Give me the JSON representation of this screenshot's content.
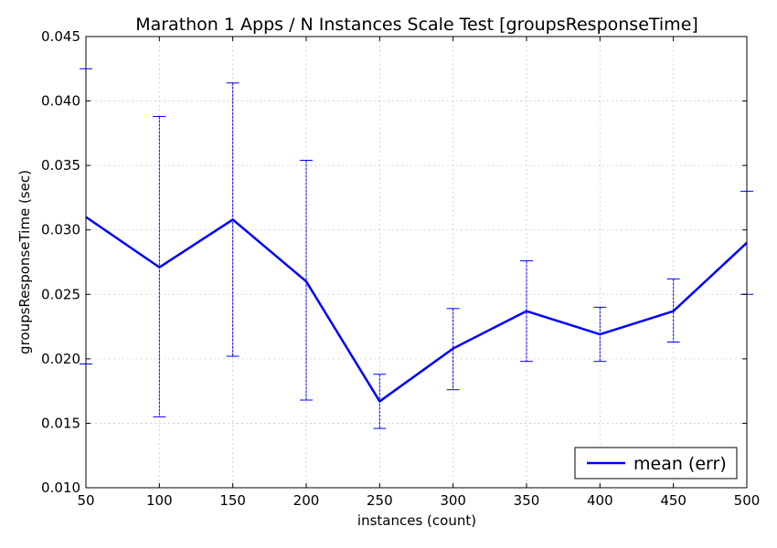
{
  "chart_data": {
    "type": "line",
    "title": "Marathon 1 Apps / N Instances Scale Test [groupsResponseTime]",
    "xlabel": "instances (count)",
    "ylabel": "groupsResponseTime (sec)",
    "xlim": [
      50,
      500
    ],
    "ylim": [
      0.01,
      0.045
    ],
    "xticks": [
      50,
      100,
      150,
      200,
      250,
      300,
      350,
      400,
      450,
      500
    ],
    "xtick_labels": [
      "50",
      "100",
      "150",
      "200",
      "250",
      "300",
      "350",
      "400",
      "450",
      "500"
    ],
    "yticks": [
      0.01,
      0.015,
      0.02,
      0.025,
      0.03,
      0.035,
      0.04,
      0.045
    ],
    "ytick_labels": [
      "0.010",
      "0.015",
      "0.020",
      "0.025",
      "0.030",
      "0.035",
      "0.040",
      "0.045"
    ],
    "grid": true,
    "legend_position": "bottom-right",
    "series": [
      {
        "name": "mean (err)",
        "color": "#0000ff",
        "x": [
          50,
          100,
          150,
          200,
          250,
          300,
          350,
          400,
          450,
          500
        ],
        "y": [
          0.031,
          0.0271,
          0.0308,
          0.026,
          0.0167,
          0.0208,
          0.0237,
          0.0219,
          0.0237,
          0.029
        ],
        "err_low": [
          0.0196,
          0.0155,
          0.0202,
          0.0168,
          0.0146,
          0.0176,
          0.0198,
          0.0198,
          0.0213,
          0.025
        ],
        "err_high": [
          0.0425,
          0.0388,
          0.0414,
          0.0354,
          0.0188,
          0.0239,
          0.0276,
          0.024,
          0.0262,
          0.033
        ]
      }
    ]
  }
}
